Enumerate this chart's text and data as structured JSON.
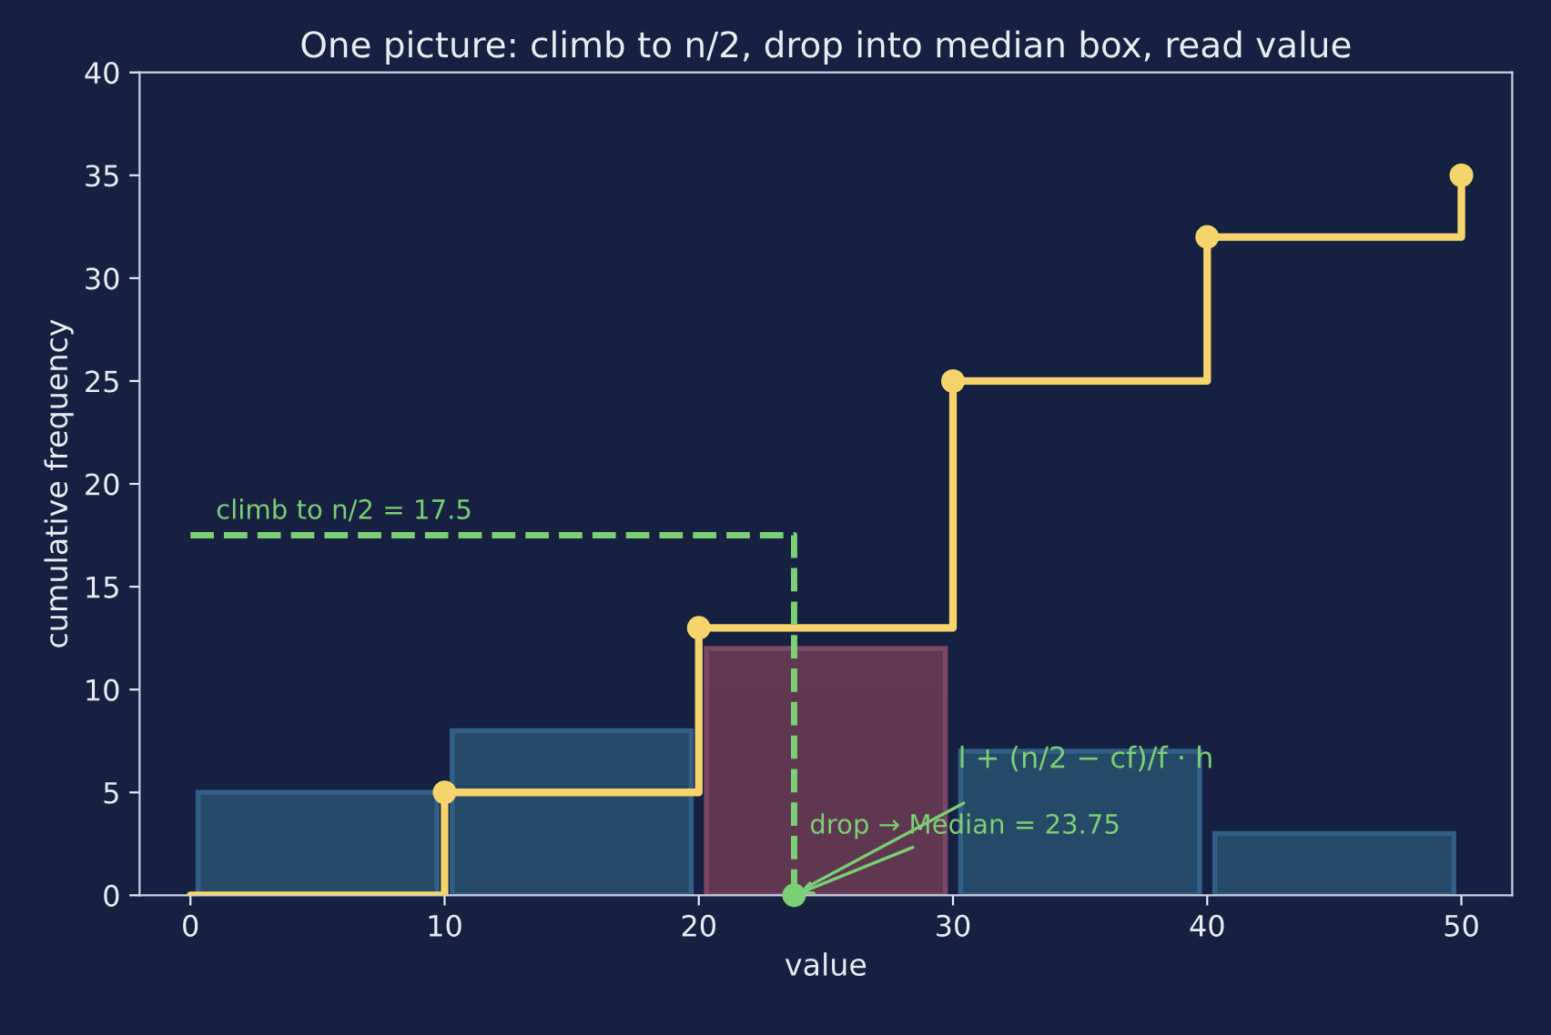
{
  "chart_data": {
    "type": "histogram",
    "title": "One picture: climb to n/2, drop into median box, read value",
    "xlabel": "value",
    "ylabel": "cumulative frequency",
    "bins": [
      0,
      10,
      20,
      30,
      40,
      50
    ],
    "values": [
      5,
      8,
      12,
      7,
      3
    ],
    "colors": [
      "#2b5270",
      "#2b5270",
      "#6e3d55",
      "#2b5270",
      "#2b5270"
    ],
    "series": [
      {
        "type": "step",
        "x": [
          0,
          10,
          20,
          30,
          40,
          50
        ],
        "values": [
          0,
          5,
          13,
          25,
          32,
          35
        ],
        "color": "#f5d56b"
      },
      {
        "type": "scatter",
        "x": [
          10,
          20,
          30,
          40,
          50
        ],
        "values": [
          5,
          13,
          25,
          32,
          35
        ],
        "color": "#f5d56b"
      },
      {
        "type": "line",
        "x": [
          0,
          23.75,
          23.75
        ],
        "values": [
          17.5,
          17.5,
          0
        ],
        "color": "#7ccf74",
        "line_style": "dashed"
      },
      {
        "type": "scatter",
        "x": [
          23.75
        ],
        "values": [
          0
        ],
        "color": "#7ccf74"
      }
    ],
    "annotations": [
      "climb to n/2 = 17.5",
      {
        "text": "drop → Median = 23.75",
        "x": 23.75,
        "y": 0
      },
      "l + (n/2 − cf)/f · h"
    ],
    "xlim": [
      -2,
      52
    ],
    "xticks": [
      0,
      10,
      20,
      30,
      40,
      50
    ],
    "ylim": [
      0,
      40
    ],
    "yticks": [
      0,
      5,
      10,
      15,
      20,
      25,
      30,
      35,
      40
    ],
    "grid": false,
    "legend": false
  }
}
